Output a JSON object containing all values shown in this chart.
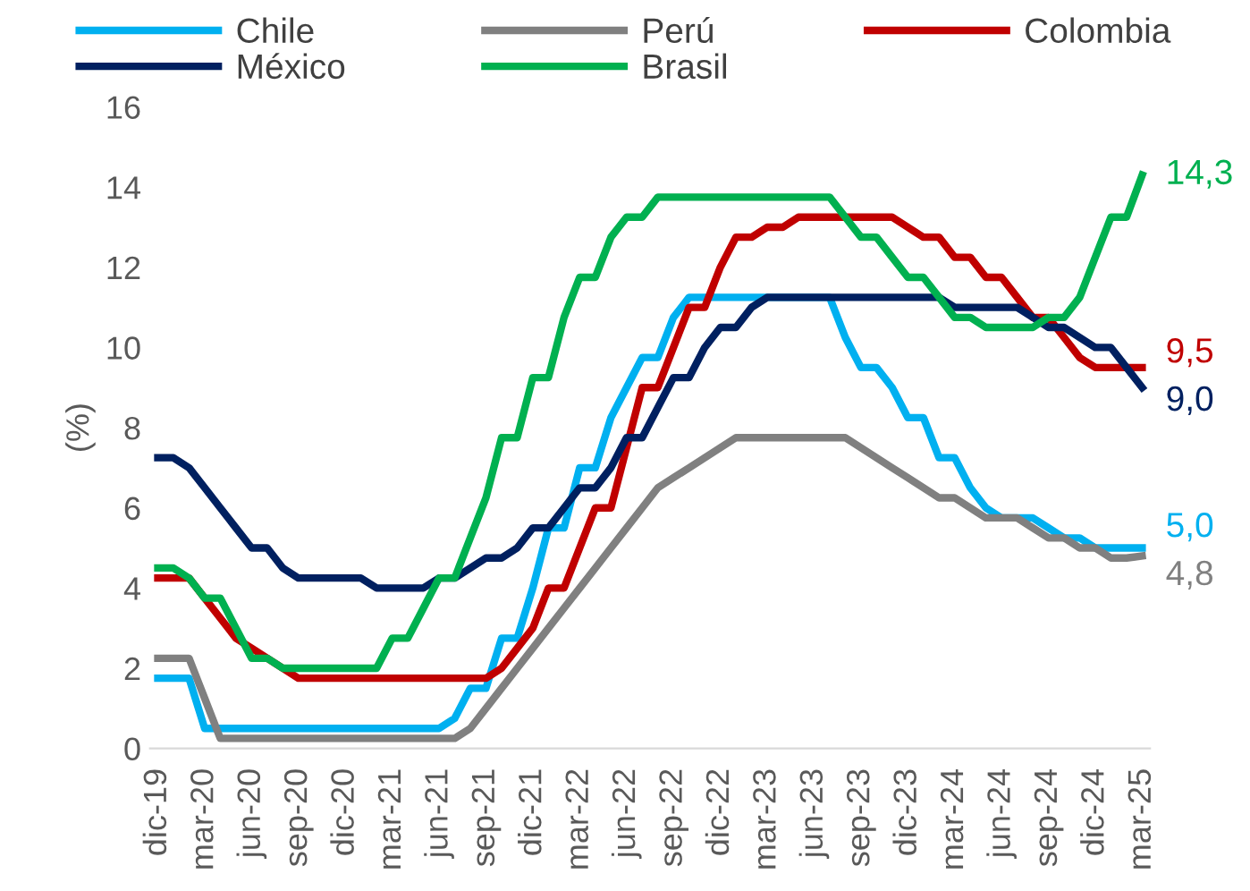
{
  "chart_data": {
    "type": "line",
    "ylabel": "(%)",
    "categories": [
      "dic-19",
      null,
      null,
      "mar-20",
      null,
      null,
      "jun-20",
      null,
      null,
      "sep-20",
      null,
      null,
      "dic-20",
      null,
      null,
      "mar-21",
      null,
      null,
      "jun-21",
      null,
      null,
      "sep-21",
      null,
      null,
      "dic-21",
      null,
      null,
      "mar-22",
      null,
      null,
      "jun-22",
      null,
      null,
      "sep-22",
      null,
      null,
      "dic-22",
      null,
      null,
      "mar-23",
      null,
      null,
      "jun-23",
      null,
      null,
      "sep-23",
      null,
      null,
      "dic-23",
      null,
      null,
      "mar-24",
      null,
      null,
      "jun-24",
      null,
      null,
      "sep-24",
      null,
      null,
      "dic-24",
      null,
      null,
      "mar-25"
    ],
    "series": [
      {
        "name": "Chile",
        "color": "#00b0f0",
        "values": [
          1.75,
          1.75,
          1.75,
          0.5,
          0.5,
          0.5,
          0.5,
          0.5,
          0.5,
          0.5,
          0.5,
          0.5,
          0.5,
          0.5,
          0.5,
          0.5,
          0.5,
          0.5,
          0.5,
          0.75,
          1.5,
          1.5,
          2.75,
          2.75,
          4.0,
          5.5,
          5.5,
          7.0,
          7.0,
          8.25,
          9.0,
          9.75,
          9.75,
          10.75,
          11.25,
          11.25,
          11.25,
          11.25,
          11.25,
          11.25,
          11.25,
          11.25,
          11.25,
          11.25,
          10.25,
          9.5,
          9.5,
          9.0,
          8.25,
          8.25,
          7.25,
          7.25,
          6.5,
          6.0,
          5.75,
          5.75,
          5.75,
          5.5,
          5.25,
          5.25,
          5.0,
          5.0,
          5.0,
          5.0
        ]
      },
      {
        "name": "Perú",
        "color": "#808080",
        "values": [
          2.25,
          2.25,
          2.25,
          1.25,
          0.25,
          0.25,
          0.25,
          0.25,
          0.25,
          0.25,
          0.25,
          0.25,
          0.25,
          0.25,
          0.25,
          0.25,
          0.25,
          0.25,
          0.25,
          0.25,
          0.5,
          1.0,
          1.5,
          2.0,
          2.5,
          3.0,
          3.5,
          4.0,
          4.5,
          5.0,
          5.5,
          6.0,
          6.5,
          6.75,
          7.0,
          7.25,
          7.5,
          7.75,
          7.75,
          7.75,
          7.75,
          7.75,
          7.75,
          7.75,
          7.75,
          7.5,
          7.25,
          7.0,
          6.75,
          6.5,
          6.25,
          6.25,
          6.0,
          5.75,
          5.75,
          5.75,
          5.5,
          5.25,
          5.25,
          5.0,
          5.0,
          4.75,
          4.75,
          4.8
        ]
      },
      {
        "name": "Colombia",
        "color": "#c00000",
        "values": [
          4.25,
          4.25,
          4.25,
          3.75,
          3.25,
          2.75,
          2.5,
          2.25,
          2.0,
          1.75,
          1.75,
          1.75,
          1.75,
          1.75,
          1.75,
          1.75,
          1.75,
          1.75,
          1.75,
          1.75,
          1.75,
          1.75,
          2.0,
          2.5,
          3.0,
          4.0,
          4.0,
          5.0,
          6.0,
          6.0,
          7.5,
          9.0,
          9.0,
          10.0,
          11.0,
          11.0,
          12.0,
          12.75,
          12.75,
          13.0,
          13.0,
          13.25,
          13.25,
          13.25,
          13.25,
          13.25,
          13.25,
          13.25,
          13.0,
          12.75,
          12.75,
          12.25,
          12.25,
          11.75,
          11.75,
          11.25,
          10.75,
          10.75,
          10.25,
          9.75,
          9.5,
          9.5,
          9.5,
          9.5
        ]
      },
      {
        "name": "México",
        "color": "#002060",
        "values": [
          7.25,
          7.25,
          7.0,
          6.5,
          6.0,
          5.5,
          5.0,
          5.0,
          4.5,
          4.25,
          4.25,
          4.25,
          4.25,
          4.25,
          4.0,
          4.0,
          4.0,
          4.0,
          4.25,
          4.25,
          4.5,
          4.75,
          4.75,
          5.0,
          5.5,
          5.5,
          6.0,
          6.5,
          6.5,
          7.0,
          7.75,
          7.75,
          8.5,
          9.25,
          9.25,
          10.0,
          10.5,
          10.5,
          11.0,
          11.25,
          11.25,
          11.25,
          11.25,
          11.25,
          11.25,
          11.25,
          11.25,
          11.25,
          11.25,
          11.25,
          11.25,
          11.0,
          11.0,
          11.0,
          11.0,
          11.0,
          10.75,
          10.5,
          10.5,
          10.25,
          10.0,
          10.0,
          9.5,
          9.0
        ]
      },
      {
        "name": "Brasil",
        "color": "#00b050",
        "values": [
          4.5,
          4.5,
          4.25,
          3.75,
          3.75,
          3.0,
          2.25,
          2.25,
          2.0,
          2.0,
          2.0,
          2.0,
          2.0,
          2.0,
          2.0,
          2.75,
          2.75,
          3.5,
          4.25,
          4.25,
          5.25,
          6.25,
          7.75,
          7.75,
          9.25,
          9.25,
          10.75,
          11.75,
          11.75,
          12.75,
          13.25,
          13.25,
          13.75,
          13.75,
          13.75,
          13.75,
          13.75,
          13.75,
          13.75,
          13.75,
          13.75,
          13.75,
          13.75,
          13.75,
          13.25,
          12.75,
          12.75,
          12.25,
          11.75,
          11.75,
          11.25,
          10.75,
          10.75,
          10.5,
          10.5,
          10.5,
          10.5,
          10.75,
          10.75,
          11.25,
          12.25,
          13.25,
          13.25,
          14.3
        ]
      }
    ],
    "ylim": [
      0,
      16
    ],
    "yticks": [
      0,
      2,
      4,
      6,
      8,
      10,
      12,
      14,
      16
    ],
    "grid": false,
    "legend": "top",
    "marker": "none",
    "line_style": "solid",
    "annotations": [
      {
        "text": "5,0",
        "x": "mar-25",
        "y": 5.0
      },
      {
        "text": "4,8",
        "x": "mar-25",
        "y": 4.8
      },
      {
        "text": "9,5",
        "x": "mar-25",
        "y": 9.5
      },
      {
        "text": "9,0",
        "x": "mar-25",
        "y": 9.0
      },
      {
        "text": "14,3",
        "x": "mar-25",
        "y": 14.3
      }
    ]
  }
}
